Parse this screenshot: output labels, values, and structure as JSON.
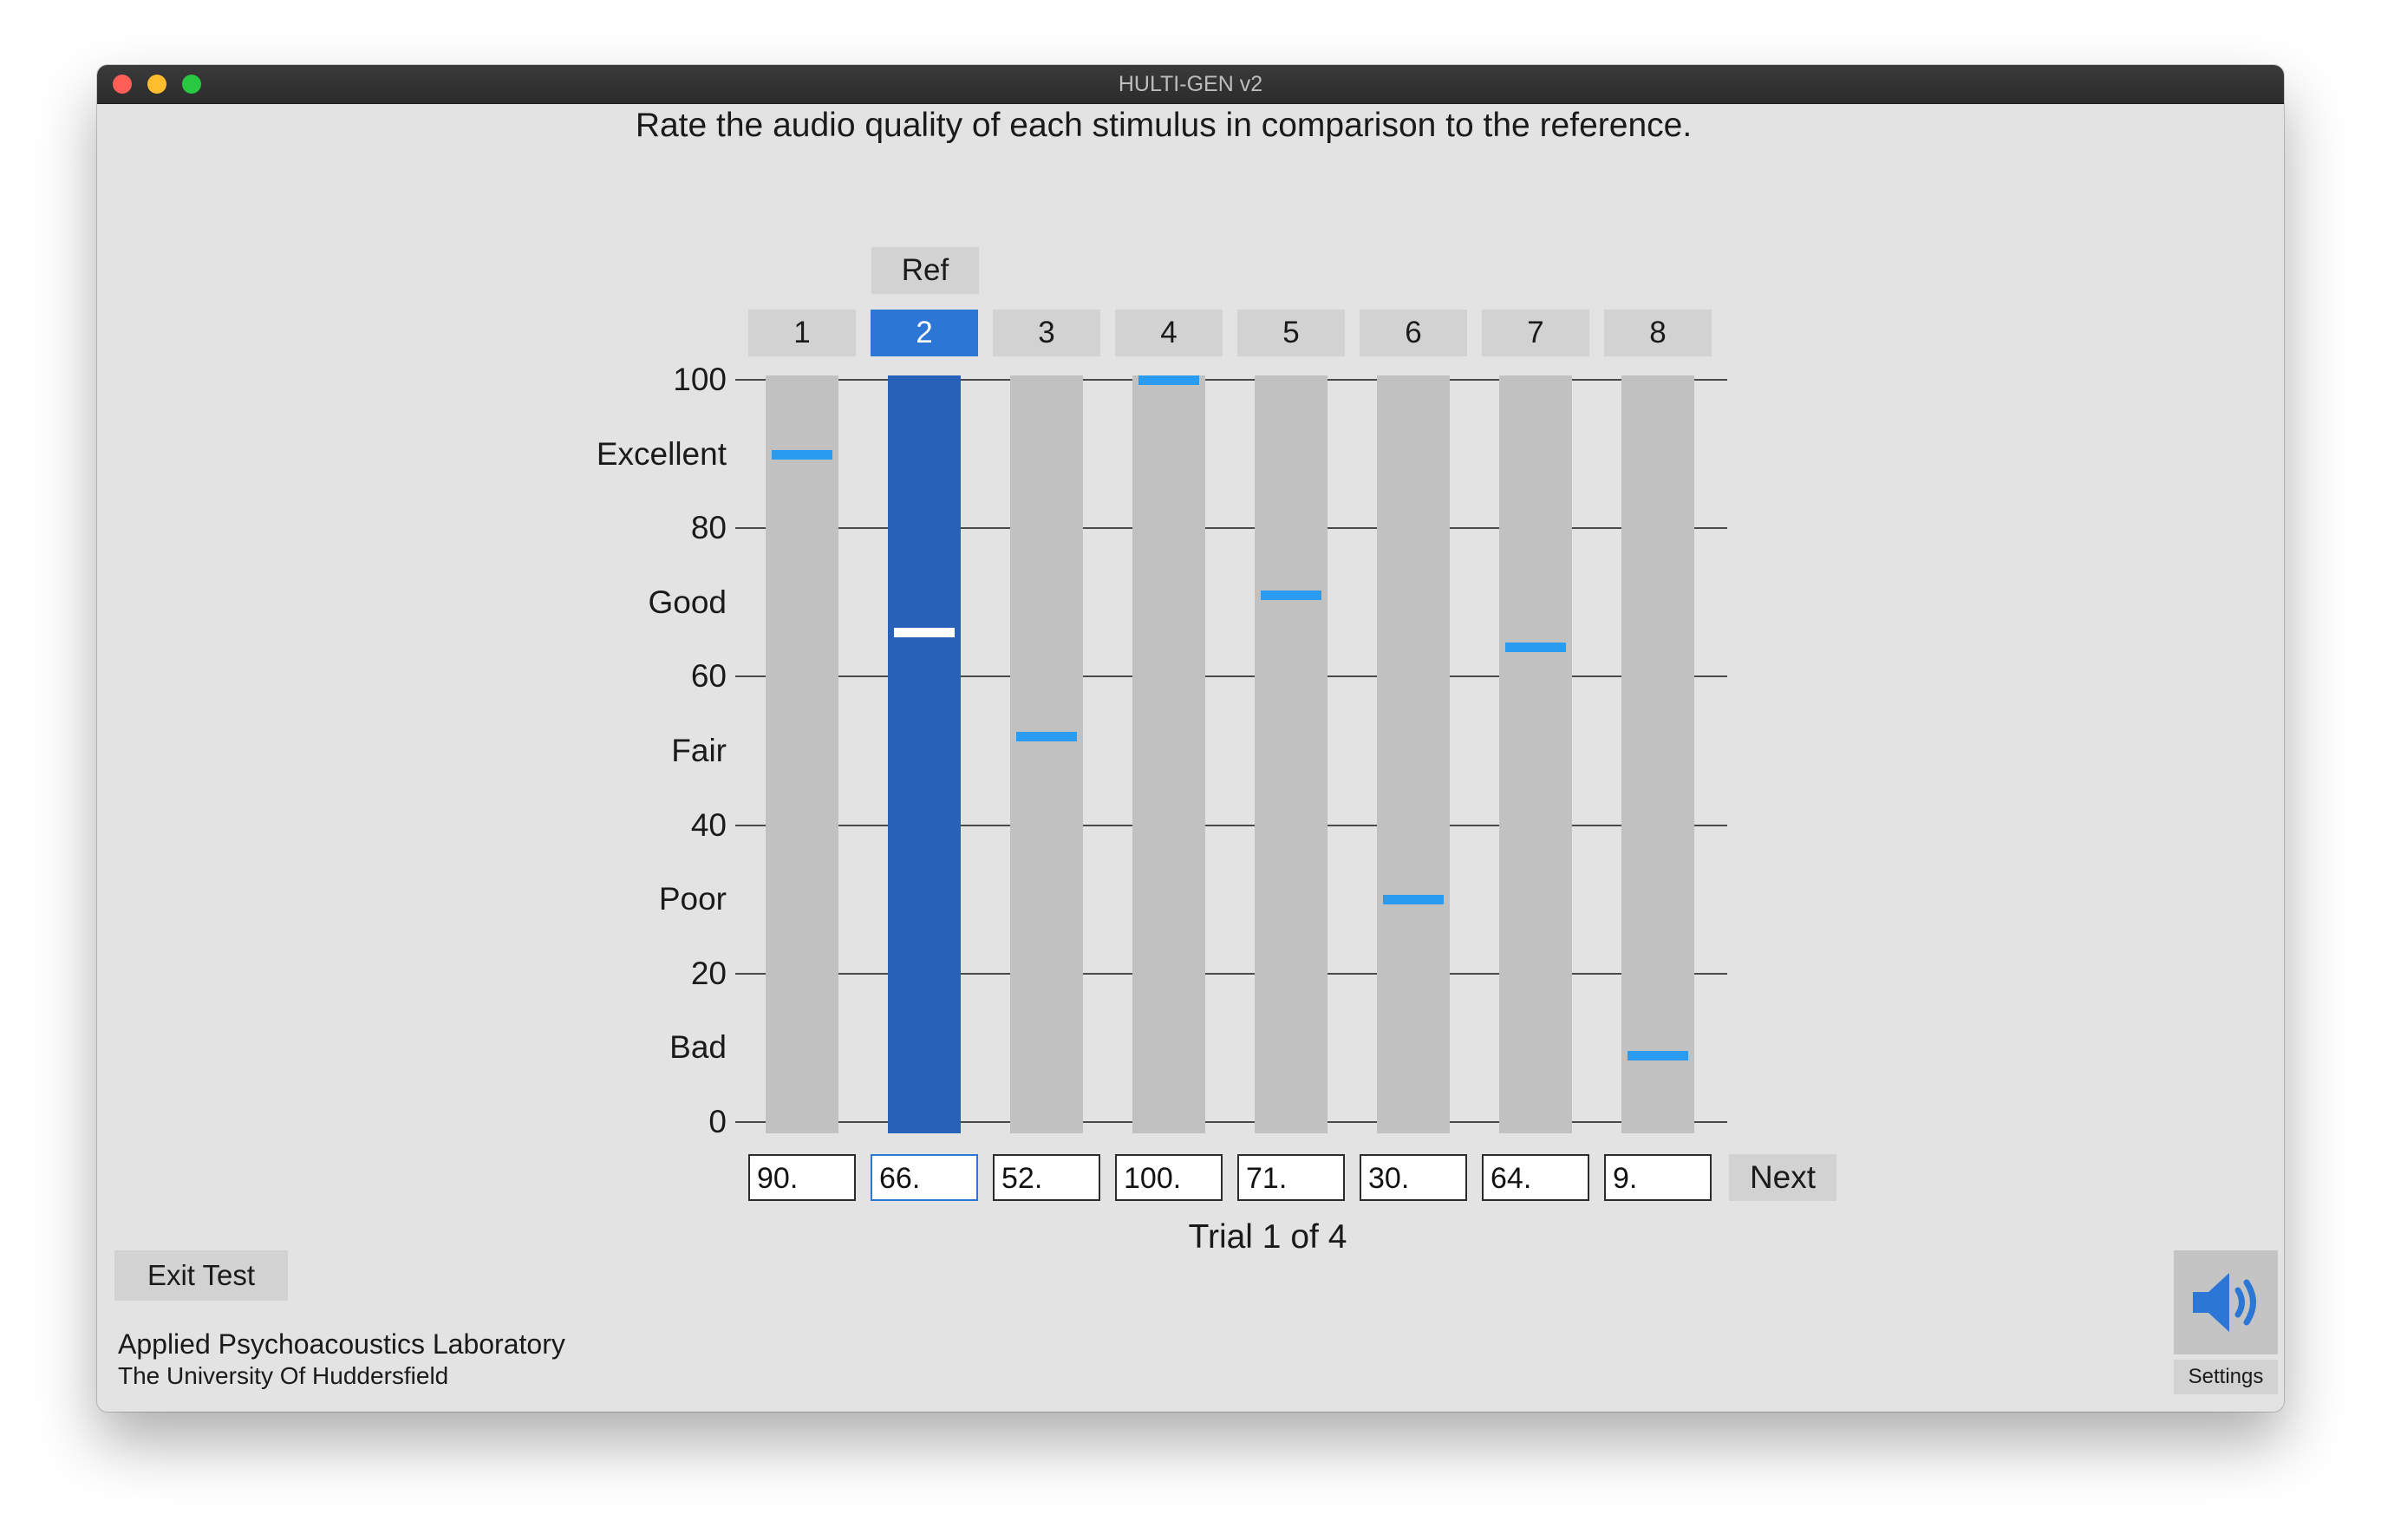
{
  "window": {
    "title": "HULTI-GEN v2"
  },
  "instruction": "Rate the audio quality of each stimulus in comparison to the reference.",
  "reference_label": "Ref",
  "selected_stimulus": 2,
  "y_axis": {
    "range": [
      0,
      100
    ],
    "numeric_ticks": [
      "100",
      "80",
      "60",
      "40",
      "20",
      "0"
    ],
    "category_labels": [
      "Excellent",
      "Good",
      "Fair",
      "Poor",
      "Bad"
    ]
  },
  "stimuli": [
    {
      "label": "1",
      "rating": 90,
      "score_text": "90."
    },
    {
      "label": "2",
      "rating": 66,
      "score_text": "66."
    },
    {
      "label": "3",
      "rating": 52,
      "score_text": "52."
    },
    {
      "label": "4",
      "rating": 100,
      "score_text": "100."
    },
    {
      "label": "5",
      "rating": 71,
      "score_text": "71."
    },
    {
      "label": "6",
      "rating": 30,
      "score_text": "30."
    },
    {
      "label": "7",
      "rating": 64,
      "score_text": "64."
    },
    {
      "label": "8",
      "rating": 9,
      "score_text": "9."
    }
  ],
  "buttons": {
    "next": "Next",
    "exit": "Exit Test",
    "settings": "Settings"
  },
  "trial_status": "Trial 1 of 4",
  "footer": {
    "lab": "Applied Psychoacoustics Laboratory",
    "university": "The University Of Huddersfield"
  },
  "icons": {
    "settings": "speaker-volume-icon"
  },
  "colors": {
    "handle": "#2a9cf0",
    "selected_track": "#2862b8",
    "selected_header": "#2c77d6"
  }
}
